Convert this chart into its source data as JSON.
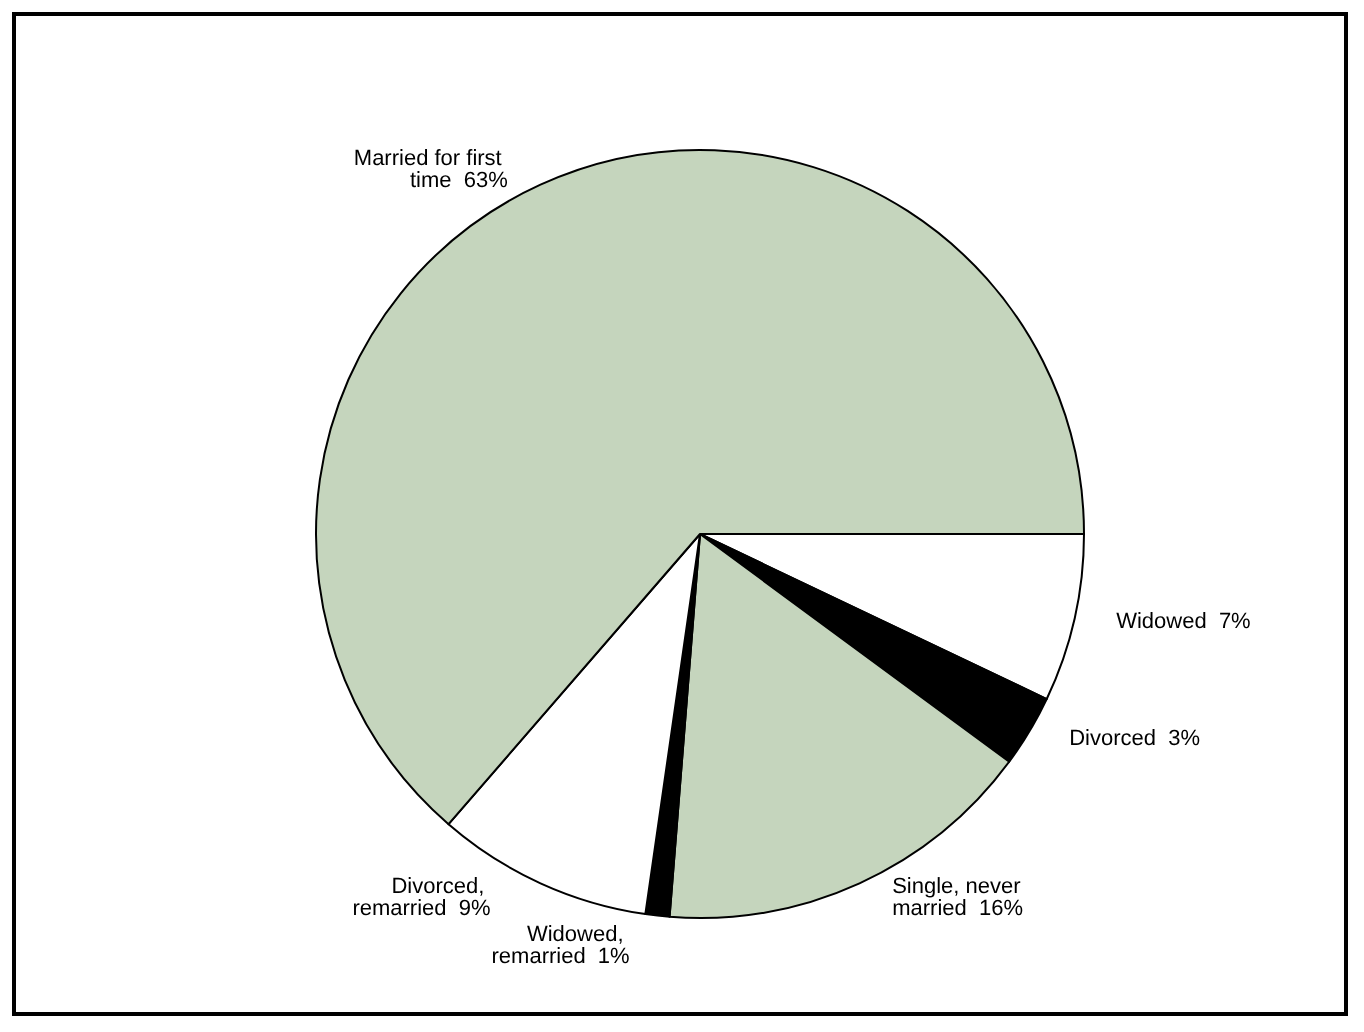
{
  "chart_data": {
    "type": "pie",
    "categories": [
      "Widowed",
      "Divorced",
      "Single, never married",
      "Widowed, remarried",
      "Divorced, remarried",
      "Married for first time"
    ],
    "values": [
      7,
      3,
      16,
      1,
      9,
      63
    ],
    "colors": [
      "#ffffff",
      "#000000",
      "#c5d5bd",
      "#000000",
      "#ffffff",
      "#c5d5bd"
    ],
    "value_labels": [
      "7%",
      "3%",
      "16%",
      "1%",
      "9%",
      "63%"
    ],
    "legend": false
  }
}
